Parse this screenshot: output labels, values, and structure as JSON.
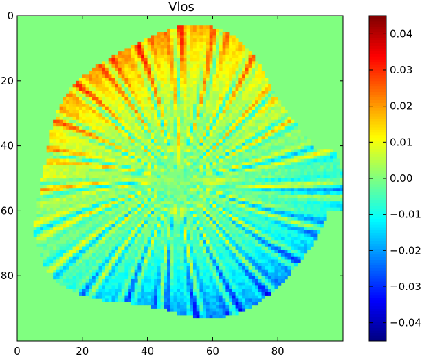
{
  "chart_data": {
    "type": "heatmap",
    "title": "Vlos",
    "xlabel": "",
    "ylabel": "",
    "xlim": [
      0,
      100
    ],
    "ylim": [
      100,
      0
    ],
    "x_ticks": [
      0,
      20,
      40,
      60,
      80
    ],
    "y_ticks": [
      0,
      20,
      40,
      60,
      80
    ],
    "colorbar": {
      "colormap": "jet",
      "range": [
        -0.045,
        0.045
      ],
      "ticks": [
        -0.04,
        -0.03,
        -0.02,
        -0.01,
        0.0,
        0.01,
        0.02,
        0.03,
        0.04
      ],
      "tick_labels": [
        "−0.04",
        "−0.03",
        "−0.02",
        "−0.01",
        "0.00",
        "0.01",
        "0.02",
        "0.03",
        "0.04"
      ]
    },
    "background_value": 0.0,
    "feature": {
      "description": "irregular circular region of radial streak pattern",
      "center": [
        49,
        50
      ],
      "radius_approx": 45,
      "positive_region": "upper-left (values up to ~0.04)",
      "negative_region": "right and bottom (values down to ~-0.04)"
    }
  }
}
